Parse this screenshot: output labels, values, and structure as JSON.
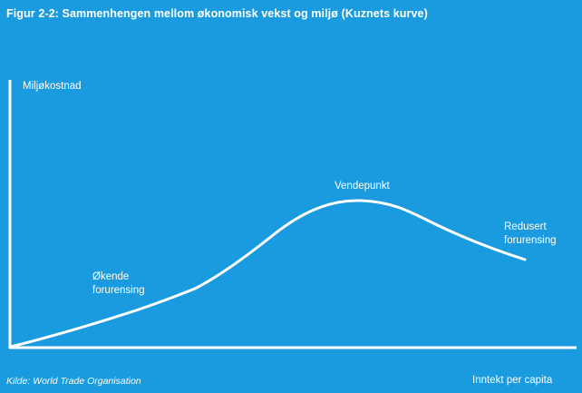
{
  "figure": {
    "title": "Figur 2-2: Sammenhengen mellom økonomisk vekst og miljø (Kuznets kurve)",
    "source": "Kilde: World Trade Organisation"
  },
  "axes": {
    "y_label": "Miljøkostnad",
    "x_label": "Inntekt per capita"
  },
  "annotations": {
    "rising": [
      "Økende",
      "forurensing"
    ],
    "peak": "Vendepunkt",
    "falling": [
      "Redusert",
      "forurensing"
    ]
  },
  "colors": {
    "background": "#1a9be0",
    "foreground": "#ffffff"
  },
  "curve": {
    "shape": "inverted-U"
  }
}
